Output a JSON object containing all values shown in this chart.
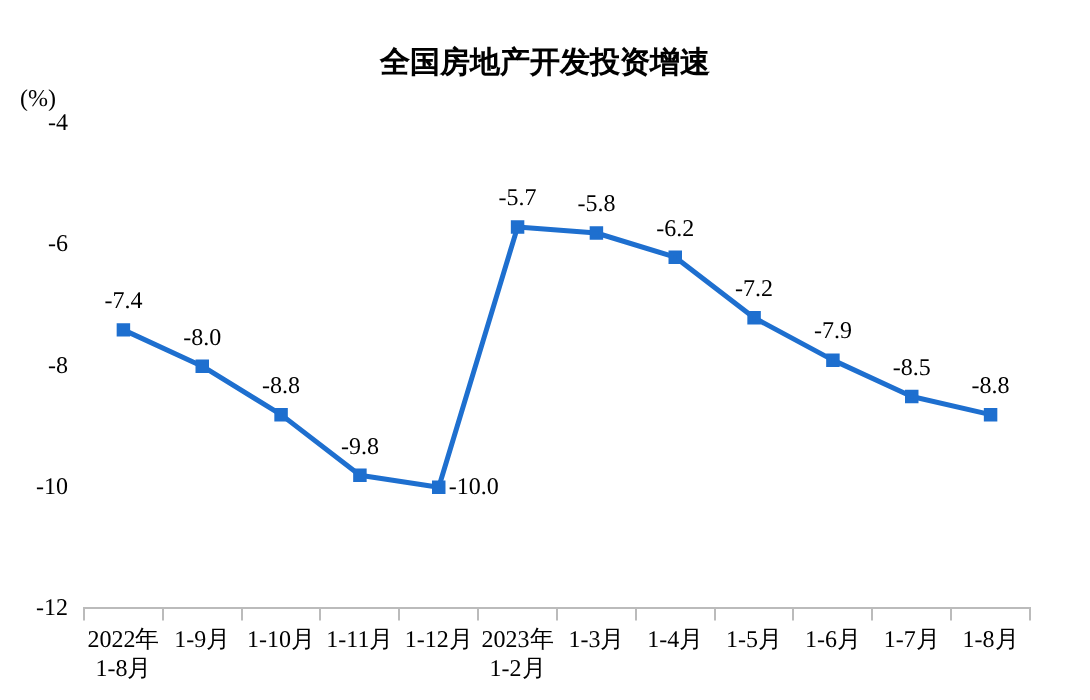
{
  "chart_data": {
    "type": "line",
    "title": "全国房地产开发投资增速",
    "ylabel": "(%)",
    "categories": [
      "2022年\n1-8月",
      "1-9月",
      "1-10月",
      "1-11月",
      "1-12月",
      "2023年\n1-2月",
      "1-3月",
      "1-4月",
      "1-5月",
      "1-6月",
      "1-7月",
      "1-8月"
    ],
    "series": [
      {
        "color": "#1e6fcf",
        "values": [
          -7.4,
          -8.0,
          -8.8,
          -9.8,
          -10.0,
          -5.7,
          -5.8,
          -6.2,
          -7.2,
          -7.9,
          -8.5,
          -8.8
        ]
      }
    ],
    "value_labels": [
      "-7.4",
      "-8.0",
      "-8.8",
      "-9.8",
      "-10.0",
      "-5.7",
      "-5.8",
      "-6.2",
      "-7.2",
      "-7.9",
      "-8.5",
      "-8.8"
    ],
    "ylim": [
      -12,
      -4
    ],
    "yticks": [
      -12,
      -10,
      -8,
      -6,
      -4
    ],
    "grid": false,
    "legend": false,
    "marker": "square",
    "line_style": "solid"
  }
}
